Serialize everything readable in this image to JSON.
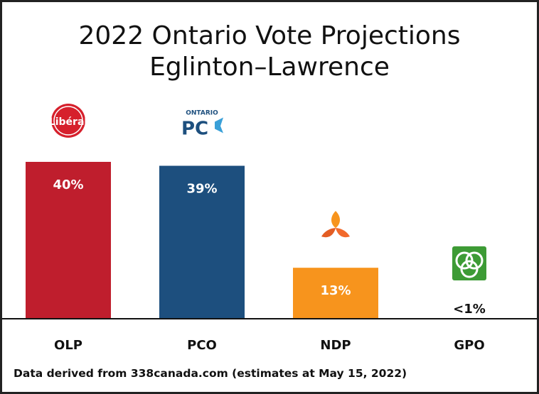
{
  "chart_data": {
    "type": "bar",
    "title": "2022 Ontario Vote Projections",
    "subtitle": "Eglinton–Lawrence",
    "categories": [
      "OLP",
      "PCO",
      "NDP",
      "GPO"
    ],
    "values": [
      40,
      39,
      13,
      0
    ],
    "value_labels": [
      "40%",
      "39%",
      "13%",
      "<1%"
    ],
    "colors": [
      "#bf1e2d",
      "#1d4f7e",
      "#f7941d",
      "#ffffff"
    ],
    "logos": [
      {
        "name": "liberal-logo",
        "text": "Libéral"
      },
      {
        "name": "ontario-pc-logo",
        "text_top": "ONTARIO",
        "text_main": "PC"
      },
      {
        "name": "ndp-logo"
      },
      {
        "name": "green-logo"
      }
    ],
    "ylim": [
      0,
      40
    ],
    "grid": false,
    "source": "Data derived from 338canada.com (estimates at May 15, 2022)"
  }
}
